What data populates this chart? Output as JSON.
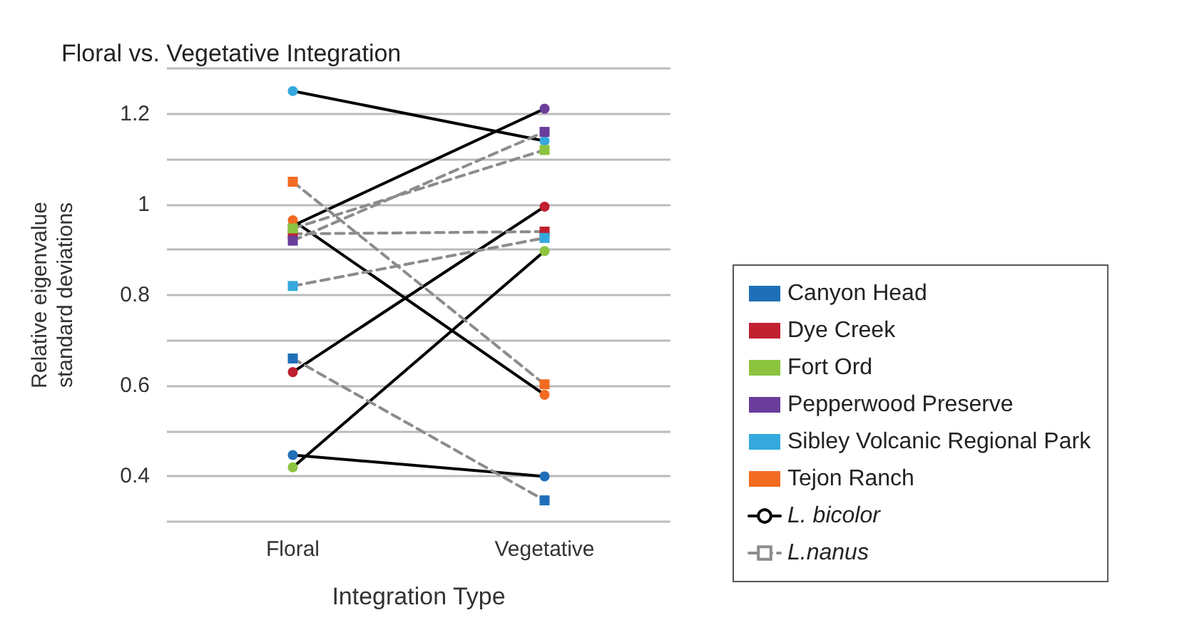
{
  "chart_data": {
    "type": "line",
    "title": "Floral vs. Vegetative Integration",
    "xlabel": "Integration Type",
    "ylabel": "Relative eigenvalue\nstandard deviations",
    "categories": [
      "Floral",
      "Vegetative"
    ],
    "ylim": [
      0.3,
      1.3
    ],
    "yticks": [
      {
        "value": 0.3,
        "label": null
      },
      0.4,
      {
        "value": 0.5,
        "label": null
      },
      0.6,
      {
        "value": 0.7,
        "label": null
      },
      0.8,
      {
        "value": 0.9,
        "label": null
      },
      1,
      {
        "value": 1.1,
        "label": null
      },
      1.2,
      {
        "value": 1.3,
        "label": null
      }
    ],
    "grid": "y",
    "legend": "right",
    "series": [
      {
        "color": "#000000",
        "colors": [
          "#1f6fb8",
          "#1f6fb8"
        ],
        "marker": "circle",
        "line_style": "solid",
        "values": [
          0.447,
          0.4
        ]
      },
      {
        "color": "#000000",
        "colors": [
          "#c0202f",
          "#c0202f"
        ],
        "marker": "circle",
        "line_style": "solid",
        "values": [
          0.63,
          0.995
        ]
      },
      {
        "color": "#000000",
        "colors": [
          "#8cc43f",
          "#8cc43f"
        ],
        "marker": "circle",
        "line_style": "solid",
        "values": [
          0.42,
          0.897
        ]
      },
      {
        "color": "#000000",
        "colors": [
          "#6a3d9a",
          "#6a3d9a"
        ],
        "marker": "circle",
        "line_style": "solid",
        "values": [
          0.953,
          1.211
        ]
      },
      {
        "color": "#000000",
        "colors": [
          "#34a9dd",
          "#34a9dd"
        ],
        "marker": "circle",
        "line_style": "solid",
        "values": [
          1.25,
          1.14
        ]
      },
      {
        "color": "#000000",
        "colors": [
          "#f26b21",
          "#f26b21"
        ],
        "marker": "circle",
        "line_style": "solid",
        "values": [
          0.965,
          0.58
        ]
      },
      {
        "name": "Canyon Head",
        "color": "#8c8c8c",
        "colors": [
          "#1f6fb8",
          "#1f6fb8"
        ],
        "marker": "square",
        "line_style": "dashed",
        "values": [
          0.66,
          0.347
        ]
      },
      {
        "name": "Dye Creek",
        "color": "#8c8c8c",
        "colors": [
          "#c0202f",
          "#c0202f"
        ],
        "marker": "square",
        "line_style": "dashed",
        "values": [
          0.935,
          0.94
        ]
      },
      {
        "name": "Fort Ord",
        "color": "#8c8c8c",
        "colors": [
          "#8cc43f",
          "#8cc43f"
        ],
        "marker": "square",
        "line_style": "dashed",
        "values": [
          0.947,
          1.12
        ]
      },
      {
        "name": "Pepperwood Preserve",
        "color": "#8c8c8c",
        "colors": [
          "#6a3d9a",
          "#6a3d9a"
        ],
        "marker": "square",
        "line_style": "dashed",
        "values": [
          0.92,
          1.16
        ]
      },
      {
        "name": "Sibley Volcanic Regional Park",
        "color": "#8c8c8c",
        "colors": [
          "#34a9dd",
          "#34a9dd"
        ],
        "marker": "square",
        "line_style": "dashed",
        "values": [
          0.82,
          0.926
        ]
      },
      {
        "name": "Tejon Ranch",
        "color": "#8c8c8c",
        "colors": [
          "#f26b21",
          "#f26b21"
        ],
        "marker": "square",
        "line_style": "dashed",
        "values": [
          1.05,
          0.603
        ]
      },
      {
        "name": "L. bicolor",
        "color": "#000000",
        "marker": "circle",
        "line_style": "solid",
        "values": [
          null,
          null
        ]
      },
      {
        "name": "L.nanus",
        "color": "#8c8c8c",
        "marker": "square",
        "line_style": "dashed",
        "values": [
          null,
          null
        ]
      }
    ]
  }
}
